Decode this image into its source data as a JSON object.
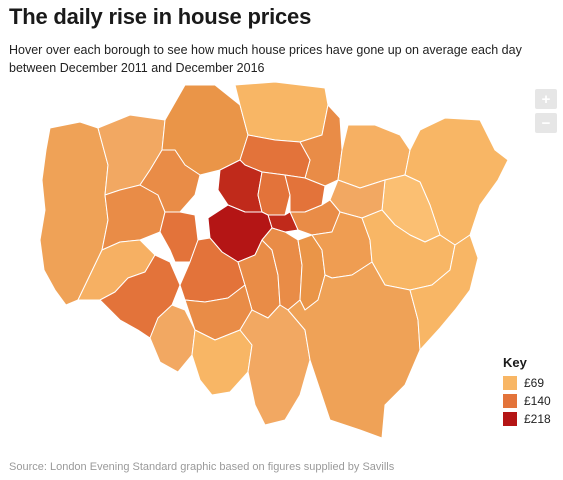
{
  "title": "The daily rise in house prices",
  "subtitle": "Hover over each borough to see how much house prices have gone up on average each day between December 2011 and December 2016",
  "zoom": {
    "in_label": "+",
    "out_label": "−"
  },
  "key": {
    "title": "Key",
    "items": [
      {
        "label": "£69",
        "color": "#f8b665"
      },
      {
        "label": "£140",
        "color": "#e3733a"
      },
      {
        "label": "£218",
        "color": "#b41515"
      }
    ]
  },
  "source": "Source: London Evening Standard graphic based on figures supplied by Savills",
  "colors": {
    "light": "#f8b665",
    "mid": "#efa257",
    "orange": "#e98c47",
    "dark_orange": "#e3733a",
    "red": "#c02a1b",
    "dark_red": "#b41515"
  }
}
